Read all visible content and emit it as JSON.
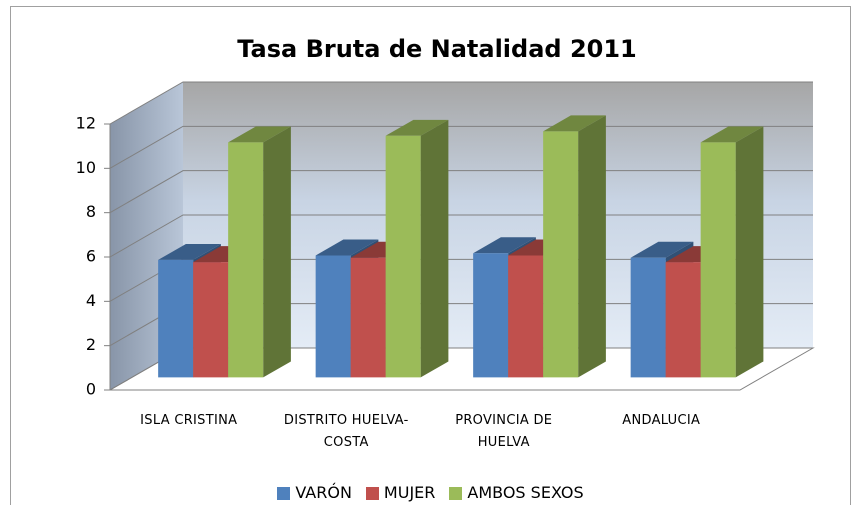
{
  "chart_data": {
    "type": "bar3d",
    "title": "Tasa Bruta de Natalidad 2011",
    "categories": [
      "ISLA CRISTINA",
      "DISTRITO HUELVA-COSTA",
      "PROVINCIA DE HUELVA",
      "ANDALUCIA"
    ],
    "series": [
      {
        "name": "VARÓN",
        "color": "#4f81bd",
        "values": [
          5.3,
          5.5,
          5.6,
          5.4
        ]
      },
      {
        "name": "MUJER",
        "color": "#c0504d",
        "values": [
          5.2,
          5.4,
          5.5,
          5.2
        ]
      },
      {
        "name": "AMBOS SEXOS",
        "color": "#9bbb59",
        "values": [
          10.6,
          10.9,
          11.1,
          10.6
        ]
      }
    ],
    "ylim": [
      0,
      12
    ],
    "yticks": [
      0,
      2,
      4,
      6,
      8,
      10,
      12
    ],
    "grid": true,
    "legend": "bottom"
  }
}
